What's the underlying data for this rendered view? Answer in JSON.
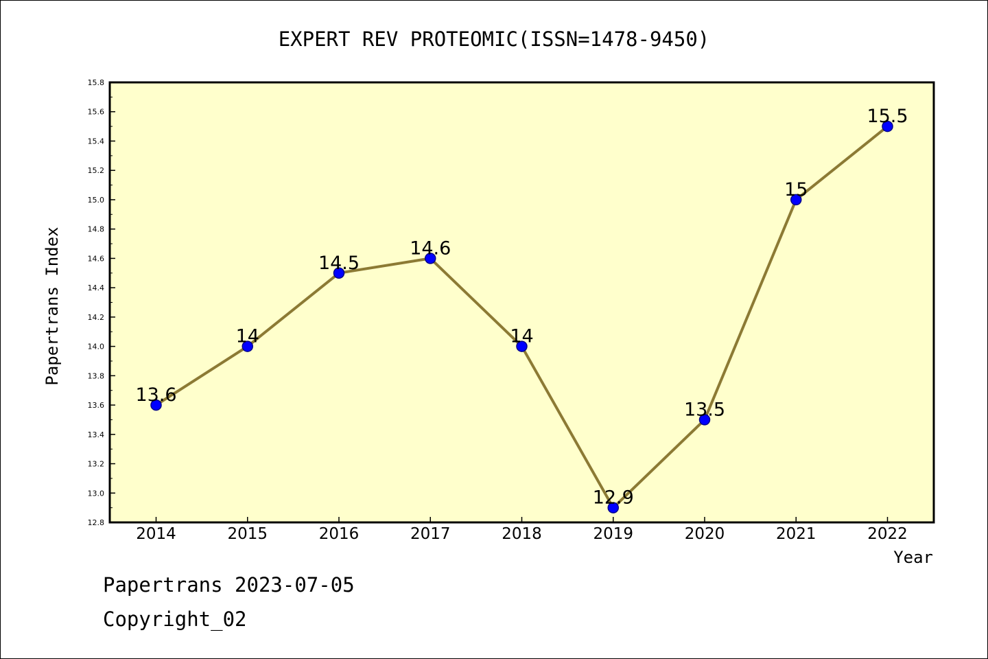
{
  "footer": {
    "line1": "Papertrans 2023-07-05",
    "line2": "Copyright_02"
  },
  "chart_data": {
    "type": "line",
    "title": "EXPERT REV PROTEOMIC(ISSN=1478-9450)",
    "xlabel": "Year",
    "ylabel": "Papertrans Index",
    "categories": [
      "2014",
      "2015",
      "2016",
      "2017",
      "2018",
      "2019",
      "2020",
      "2021",
      "2022"
    ],
    "series": [
      {
        "values": [
          13.6,
          14.0,
          14.5,
          14.6,
          14.0,
          12.9,
          13.5,
          15.0,
          15.5
        ],
        "data_labels": [
          "13.6",
          "14",
          "14.5",
          "14.6",
          "14",
          "12.9",
          "13.5",
          "15",
          "15.5"
        ]
      }
    ],
    "ylim": [
      12.8,
      15.8
    ],
    "yticks": [
      "12.8",
      "13.0",
      "13.2",
      "13.4",
      "13.6",
      "13.8",
      "14.0",
      "14.2",
      "14.4",
      "14.6",
      "14.8",
      "15.0",
      "15.2",
      "15.4",
      "15.6",
      "15.8"
    ],
    "grid": false,
    "colors": {
      "plot_background": "#ffffcc",
      "line": "#8c7a34",
      "marker_fill": "#0000ff",
      "marker_edge": "#00008b",
      "axis": "#000000"
    }
  }
}
